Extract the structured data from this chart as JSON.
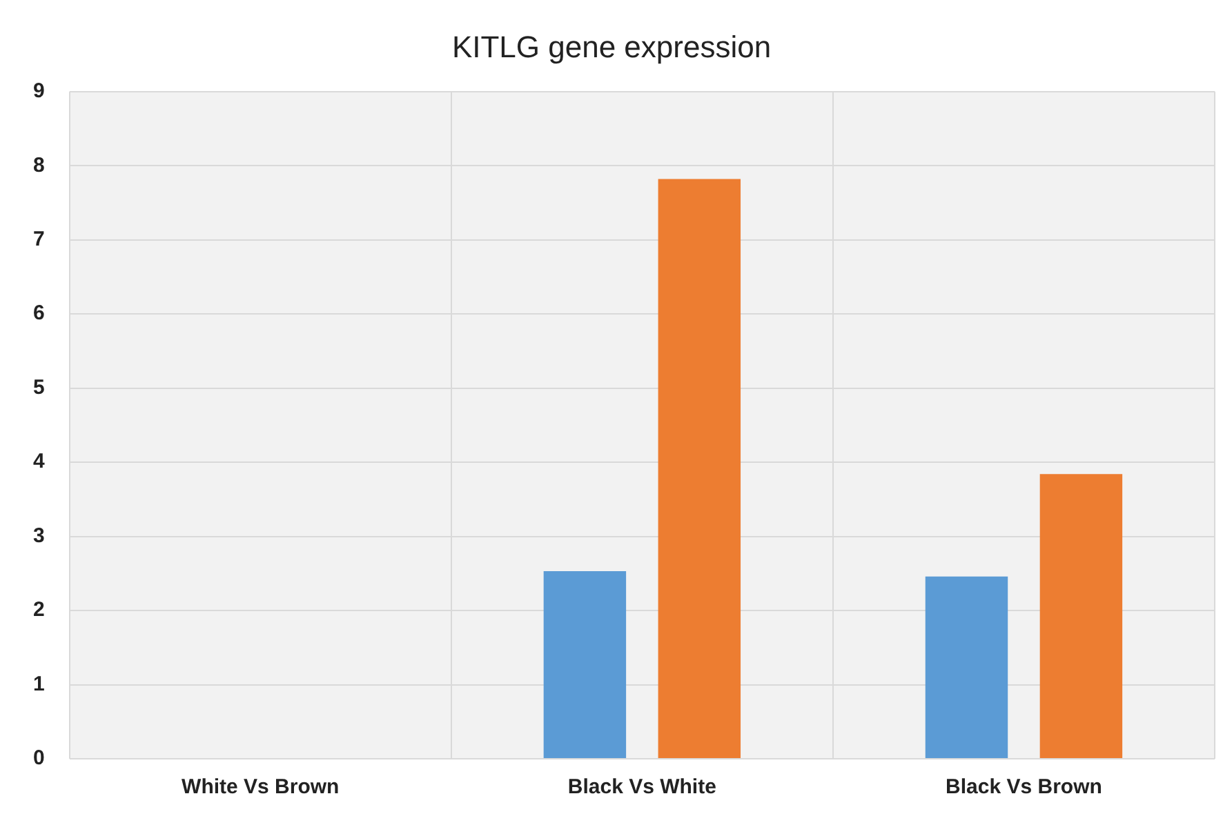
{
  "chart_data": {
    "type": "bar",
    "title": "KITLG gene expression",
    "categories": [
      "White Vs Brown",
      "Black Vs White",
      "Black Vs Brown"
    ],
    "series": [
      {
        "color": "#5b9bd5",
        "values": [
          null,
          2.53,
          2.46
        ]
      },
      {
        "color": "#ed7d31",
        "values": [
          null,
          7.82,
          3.84
        ]
      }
    ],
    "ylim": [
      0,
      9
    ],
    "yticks": [
      0,
      1,
      2,
      3,
      4,
      5,
      6,
      7,
      8,
      9
    ],
    "grid": true,
    "legend": false
  }
}
